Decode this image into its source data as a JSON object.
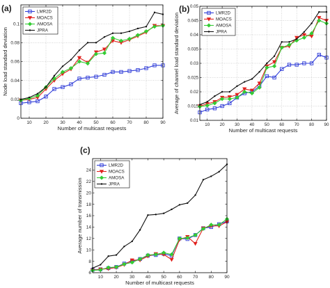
{
  "colors": {
    "LMR2D": "#2f3cd8",
    "MOACS": "#e0201c",
    "AMOSA": "#33cc33",
    "JPRA": "#111111"
  },
  "chart_data": [
    {
      "type": "line",
      "panel_label": "(a)",
      "xlabel": "Number of multicast requests",
      "ylabel": "Node load standard deviation",
      "xlim": [
        5,
        90
      ],
      "ylim": [
        0,
        0.12
      ],
      "xticks": [
        10,
        20,
        30,
        40,
        50,
        60,
        70,
        80,
        90
      ],
      "yticks": [
        0,
        0.02,
        0.04,
        0.06,
        0.08,
        0.1
      ],
      "ytick_labels": [
        "0",
        "0.02",
        "0.04",
        "0.06",
        "0.08",
        "0.1"
      ],
      "grid": true,
      "legend": "top-left",
      "x": [
        5,
        10,
        15,
        20,
        25,
        30,
        35,
        40,
        45,
        50,
        55,
        60,
        65,
        70,
        75,
        80,
        85,
        90
      ],
      "series": [
        {
          "name": "LMR2D",
          "values": [
            0.016,
            0.017,
            0.018,
            0.023,
            0.031,
            0.033,
            0.036,
            0.042,
            0.043,
            0.044,
            0.046,
            0.049,
            0.049,
            0.05,
            0.051,
            0.053,
            0.056,
            0.056
          ]
        },
        {
          "name": "MOACS",
          "values": [
            0.019,
            0.02,
            0.022,
            0.031,
            0.04,
            0.047,
            0.052,
            0.064,
            0.059,
            0.07,
            0.073,
            0.082,
            0.08,
            0.083,
            0.087,
            0.091,
            0.098,
            0.098
          ]
        },
        {
          "name": "AMOSA",
          "values": [
            0.019,
            0.021,
            0.024,
            0.033,
            0.042,
            0.049,
            0.053,
            0.06,
            0.058,
            0.068,
            0.069,
            0.085,
            0.082,
            0.084,
            0.088,
            0.092,
            0.097,
            0.098
          ]
        },
        {
          "name": "JPRA",
          "values": [
            0.02,
            0.022,
            0.026,
            0.033,
            0.045,
            0.055,
            0.062,
            0.072,
            0.08,
            0.08,
            0.086,
            0.09,
            0.09,
            0.092,
            0.095,
            0.097,
            0.112,
            0.11
          ]
        }
      ]
    },
    {
      "type": "line",
      "panel_label": "(b)",
      "xlabel": "Number of multicast requests",
      "ylabel": "Average of channel load standard deviation",
      "xlim": [
        5,
        90
      ],
      "ylim": [
        0.01,
        0.05
      ],
      "xticks": [
        10,
        20,
        30,
        40,
        50,
        60,
        70,
        80,
        90
      ],
      "yticks": [
        0.01,
        0.015,
        0.02,
        0.025,
        0.03,
        0.035,
        0.04,
        0.045,
        0.05
      ],
      "ytick_labels": [
        "0.01",
        "0.015",
        "0.02",
        "0.025",
        "0.03",
        "0.035",
        "0.04",
        "0.045",
        "0.05"
      ],
      "grid": true,
      "legend": "top-left",
      "x": [
        5,
        10,
        15,
        20,
        25,
        30,
        35,
        40,
        45,
        50,
        55,
        60,
        65,
        70,
        75,
        80,
        85,
        90
      ],
      "series": [
        {
          "name": "LMR2D",
          "values": [
            0.0128,
            0.0138,
            0.0142,
            0.015,
            0.016,
            0.018,
            0.0195,
            0.02,
            0.022,
            0.0255,
            0.025,
            0.028,
            0.0295,
            0.0295,
            0.03,
            0.03,
            0.033,
            0.032
          ]
        },
        {
          "name": "MOACS",
          "values": [
            0.015,
            0.0158,
            0.0165,
            0.018,
            0.0182,
            0.019,
            0.021,
            0.0205,
            0.023,
            0.029,
            0.0305,
            0.0355,
            0.036,
            0.039,
            0.04,
            0.0395,
            0.046,
            0.045
          ]
        },
        {
          "name": "AMOSA",
          "values": [
            0.0148,
            0.0152,
            0.016,
            0.0175,
            0.0175,
            0.018,
            0.02,
            0.0195,
            0.0215,
            0.0285,
            0.029,
            0.0355,
            0.0365,
            0.038,
            0.039,
            0.0405,
            0.045,
            0.044
          ]
        },
        {
          "name": "JPRA",
          "values": [
            0.0155,
            0.0165,
            0.0185,
            0.02,
            0.02,
            0.022,
            0.0235,
            0.0245,
            0.027,
            0.03,
            0.0325,
            0.0375,
            0.0375,
            0.0385,
            0.041,
            0.044,
            0.048,
            0.048
          ]
        }
      ]
    },
    {
      "type": "line",
      "panel_label": "(c)",
      "xlabel": "Number of multicast requests",
      "ylabel": "Average number of transmission",
      "xlim": [
        5,
        90
      ],
      "ylim": [
        6,
        26
      ],
      "xticks": [
        10,
        20,
        30,
        40,
        50,
        60,
        70,
        80,
        90
      ],
      "yticks": [
        6,
        8,
        10,
        12,
        14,
        16,
        18,
        20,
        22,
        24
      ],
      "ytick_labels": [
        "6",
        "8",
        "10",
        "12",
        "14",
        "16",
        "18",
        "20",
        "22",
        "24"
      ],
      "grid": false,
      "legend": "top-left",
      "x": [
        5,
        10,
        15,
        20,
        25,
        30,
        35,
        40,
        45,
        50,
        55,
        60,
        65,
        70,
        75,
        80,
        85,
        90
      ],
      "series": [
        {
          "name": "LMR2D",
          "values": [
            6.5,
            6.6,
            6.8,
            7.0,
            7.6,
            8.0,
            8.4,
            9.0,
            9.1,
            9.3,
            9.0,
            12.0,
            11.9,
            12.6,
            13.8,
            14.0,
            14.5,
            15.0
          ]
        },
        {
          "name": "MOACS",
          "values": [
            6.4,
            6.6,
            6.7,
            6.9,
            7.4,
            8.2,
            8.2,
            8.9,
            9.3,
            9.2,
            8.3,
            11.8,
            12.3,
            11.1,
            13.8,
            14.2,
            14.2,
            14.9
          ]
        },
        {
          "name": "AMOSA",
          "values": [
            6.4,
            6.5,
            6.9,
            7.0,
            7.5,
            7.8,
            8.4,
            9.1,
            9.2,
            9.5,
            9.2,
            12.0,
            12.1,
            12.6,
            13.7,
            14.4,
            14.4,
            15.4
          ]
        },
        {
          "name": "JPRA",
          "values": [
            6.8,
            7.4,
            8.9,
            9.1,
            10.6,
            11.5,
            13.5,
            16.1,
            16.2,
            16.4,
            17.1,
            17.9,
            18.2,
            19.6,
            22.3,
            22.9,
            23.7,
            25.0
          ]
        }
      ]
    }
  ]
}
